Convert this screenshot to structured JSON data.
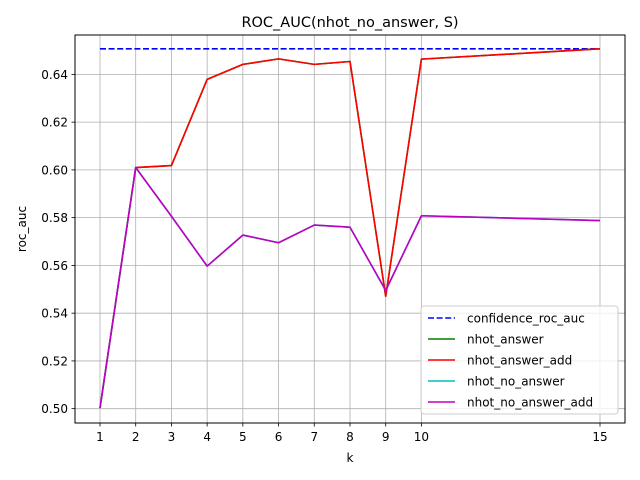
{
  "chart_data": {
    "type": "line",
    "title": "ROC_AUC(nhot_no_answer, S)",
    "xlabel": "k",
    "ylabel": "roc_auc",
    "x": [
      1,
      2,
      3,
      4,
      5,
      6,
      7,
      8,
      9,
      10,
      15
    ],
    "xticks": [
      "1",
      "2",
      "3",
      "4",
      "5",
      "6",
      "7",
      "8",
      "9",
      "10",
      "15"
    ],
    "yticks": [
      "0.50",
      "0.52",
      "0.54",
      "0.56",
      "0.58",
      "0.60",
      "0.62",
      "0.64"
    ],
    "xlim": [
      0.3,
      15.7
    ],
    "ylim": [
      0.494,
      0.6565
    ],
    "grid": true,
    "legend_position": "lower-right",
    "series": [
      {
        "name": "confidence_roc_auc",
        "color": "#0000ff",
        "style": "dashed",
        "values": [
          0.6507,
          0.6507,
          0.6507,
          0.6507,
          0.6507,
          0.6507,
          0.6507,
          0.6507,
          0.6507,
          0.6507,
          0.6507
        ]
      },
      {
        "name": "nhot_answer",
        "color": "#008000",
        "style": "solid",
        "values": [
          0.5003,
          0.601,
          0.6018,
          0.6379,
          0.6442,
          0.6465,
          0.6442,
          0.6454,
          0.5471,
          0.6464,
          0.6507
        ]
      },
      {
        "name": "nhot_answer_add",
        "color": "#ff0000",
        "style": "solid",
        "values": [
          0.5003,
          0.601,
          0.6018,
          0.6379,
          0.6442,
          0.6465,
          0.6442,
          0.6454,
          0.5471,
          0.6464,
          0.6507
        ]
      },
      {
        "name": "nhot_no_answer",
        "color": "#00bfbf",
        "style": "solid",
        "values": [
          0.5003,
          0.601,
          0.5806,
          0.5597,
          0.5727,
          0.5695,
          0.5769,
          0.576,
          0.5495,
          0.5808,
          0.5788
        ]
      },
      {
        "name": "nhot_no_answer_add",
        "color": "#bf00bf",
        "style": "solid",
        "values": [
          0.5003,
          0.601,
          0.5806,
          0.5597,
          0.5727,
          0.5695,
          0.5769,
          0.576,
          0.5495,
          0.5808,
          0.5788
        ]
      }
    ]
  }
}
